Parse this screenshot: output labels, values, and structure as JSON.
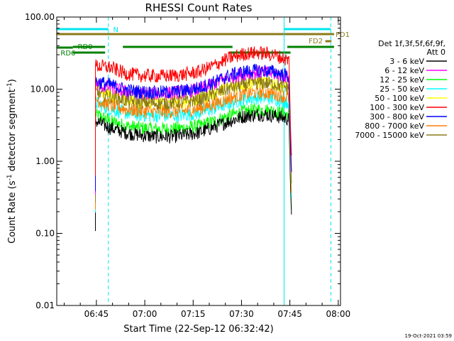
{
  "chart_data": {
    "type": "line",
    "title": "RHESSI Count Rates",
    "xlabel": "Start Time (22-Sep-12 06:32:42)",
    "ylabel": "Count Rate (s⁻¹ detector segment⁻¹)",
    "ylabel_parts": {
      "main": "Count Rate (s",
      "exp1": "-1",
      "mid": " detector segment",
      "exp2": "-1",
      "end": ")"
    },
    "x_unit": "minutes after 06:32:42",
    "xlim": [
      0,
      88
    ],
    "ylim": [
      0.01,
      100
    ],
    "yscale": "log",
    "x_ticks": [
      {
        "value": 12.3,
        "label": "06:45"
      },
      {
        "value": 27.3,
        "label": "07:00"
      },
      {
        "value": 42.3,
        "label": "07:15"
      },
      {
        "value": 57.3,
        "label": "07:30"
      },
      {
        "value": 72.3,
        "label": "07:45"
      },
      {
        "value": 87.3,
        "label": "08:00"
      }
    ],
    "y_ticks": [
      {
        "value": 100,
        "label": "100.00"
      },
      {
        "value": 10,
        "label": "10.00"
      },
      {
        "value": 1,
        "label": "1.00"
      },
      {
        "value": 0.1,
        "label": "0.10"
      },
      {
        "value": 0.01,
        "label": "0.01"
      }
    ],
    "detector_label": "Det 1f,3f,5f,6f,9f,",
    "attenuator_label": "Att 0",
    "data_window": [
      12,
      72
    ],
    "series": [
      {
        "name": "3 - 6 keV",
        "color": "#000000",
        "values": [
          3.6,
          2.9,
          2.5,
          2.3,
          2.2,
          2.2,
          2.3,
          2.5,
          3.0,
          3.6,
          4.2,
          4.5,
          4.3,
          3.8
        ]
      },
      {
        "name": "6 - 12 keV",
        "color": "#ff00ff",
        "values": [
          11.5,
          10.5,
          9.2,
          8.8,
          8.7,
          8.8,
          9.2,
          10.0,
          12.0,
          14.5,
          16.5,
          17.2,
          16.5,
          14.5
        ]
      },
      {
        "name": "12 - 25 keV",
        "color": "#00ff00",
        "values": [
          4.5,
          3.6,
          3.1,
          2.9,
          2.8,
          2.8,
          2.9,
          3.1,
          3.6,
          4.3,
          4.9,
          5.2,
          5.0,
          4.4
        ]
      },
      {
        "name": "25 - 50 keV",
        "color": "#00ffff",
        "values": [
          6.5,
          5.3,
          4.7,
          4.4,
          4.3,
          4.3,
          4.4,
          4.7,
          5.4,
          6.4,
          7.3,
          7.7,
          7.4,
          6.5
        ]
      },
      {
        "name": "50 - 100 keV",
        "color": "#ffff00",
        "values": [
          9.5,
          8.5,
          7.2,
          6.8,
          6.6,
          6.6,
          6.8,
          7.4,
          8.8,
          10.5,
          12.0,
          12.5,
          12.0,
          10.5
        ]
      },
      {
        "name": "100 - 300 keV",
        "color": "#ff0000",
        "values": [
          21,
          20,
          16.5,
          15.5,
          15.2,
          15.3,
          16.0,
          17.5,
          21.5,
          27,
          31,
          32,
          30,
          25
        ]
      },
      {
        "name": "300 - 800 keV",
        "color": "#0000ff",
        "values": [
          12.8,
          11.5,
          9.8,
          9.2,
          9.0,
          9.1,
          9.5,
          10.5,
          12.5,
          15.5,
          17.5,
          18.2,
          17.5,
          15.0
        ]
      },
      {
        "name": "800 - 7000 keV",
        "color": "#ff8000",
        "values": [
          7.2,
          6.0,
          5.3,
          5.0,
          4.9,
          4.9,
          5.0,
          5.4,
          6.3,
          7.5,
          8.6,
          9.1,
          8.7,
          7.6
        ]
      },
      {
        "name": "7000 - 15000 keV",
        "color": "#8b7a1a",
        "values": [
          9.0,
          8.0,
          7.0,
          6.6,
          6.4,
          6.4,
          6.7,
          7.2,
          8.6,
          10.3,
          11.7,
          12.3,
          11.8,
          10.3
        ]
      }
    ],
    "flags": [
      {
        "label": "N",
        "color": "#00e5ee",
        "segments": [
          [
            0,
            16
          ],
          [
            70.5,
            85
          ]
        ]
      },
      {
        "label": "FD1",
        "color": "#8b7a1a",
        "segments": [
          [
            0,
            86
          ]
        ]
      },
      {
        "label": "FD2",
        "color": "#8b7a1a",
        "segments": [
          [
            83.3,
            85.2
          ]
        ]
      },
      {
        "label": "RD0",
        "color": "#008000",
        "segments": [
          [
            5,
            15
          ],
          [
            20.5,
            54.5
          ],
          [
            71.5,
            86
          ]
        ]
      },
      {
        "label": "RD6",
        "color": "#008000",
        "segments": [
          [
            0,
            5
          ],
          [
            5,
            15
          ],
          [
            53.5,
            72.5
          ]
        ]
      }
    ],
    "vertical_markers": [
      {
        "x": 0,
        "style": "solid",
        "color": "#00e5ee"
      },
      {
        "x": 16,
        "style": "dashed",
        "color": "#00e5ee"
      },
      {
        "x": 70.5,
        "style": "solid",
        "color": "#00e5ee"
      },
      {
        "x": 85,
        "style": "dashed",
        "color": "#00e5ee"
      }
    ]
  },
  "footer": {
    "timestamp": "19-Oct-2021 03:59"
  }
}
